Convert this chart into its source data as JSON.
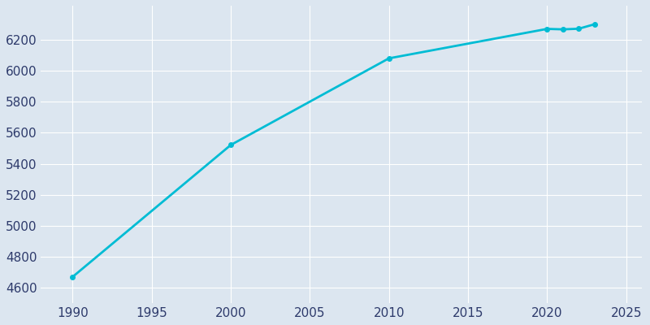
{
  "years": [
    1990,
    2000,
    2010,
    2020,
    2021,
    2022,
    2023
  ],
  "population": [
    4670,
    5521,
    6080,
    6270,
    6267,
    6271,
    6300
  ],
  "line_color": "#00bcd4",
  "marker_color": "#00bcd4",
  "background_color": "#dce6f0",
  "plot_bg_color": "#dce6f0",
  "grid_color": "#ffffff",
  "tick_label_color": "#2d3a6b",
  "ylim": [
    4500,
    6420
  ],
  "xlim": [
    1988,
    2026
  ],
  "yticks": [
    4600,
    4800,
    5000,
    5200,
    5400,
    5600,
    5800,
    6000,
    6200
  ],
  "xticks": [
    1990,
    1995,
    2000,
    2005,
    2010,
    2015,
    2020,
    2025
  ],
  "line_width": 2.0,
  "marker_size": 4
}
